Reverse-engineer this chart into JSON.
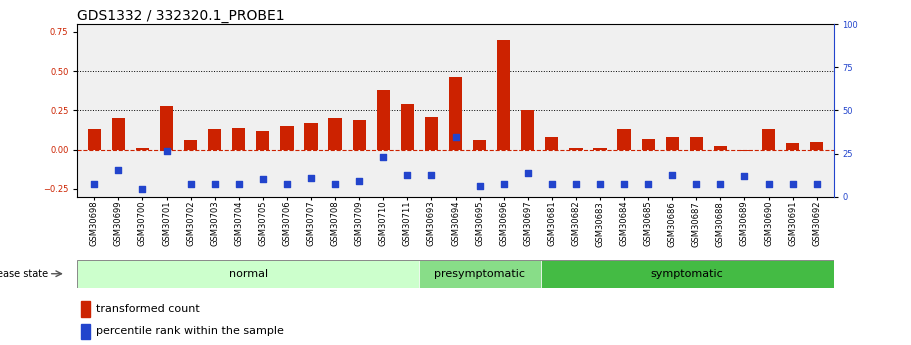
{
  "title": "GDS1332 / 332320.1_PROBE1",
  "samples": [
    "GSM30698",
    "GSM30699",
    "GSM30700",
    "GSM30701",
    "GSM30702",
    "GSM30703",
    "GSM30704",
    "GSM30705",
    "GSM30706",
    "GSM30707",
    "GSM30708",
    "GSM30709",
    "GSM30710",
    "GSM30711",
    "GSM30693",
    "GSM30694",
    "GSM30695",
    "GSM30696",
    "GSM30697",
    "GSM30681",
    "GSM30682",
    "GSM30683",
    "GSM30684",
    "GSM30685",
    "GSM30686",
    "GSM30687",
    "GSM30688",
    "GSM30689",
    "GSM30690",
    "GSM30691",
    "GSM30692"
  ],
  "red_bars": [
    0.13,
    0.2,
    0.01,
    0.28,
    0.06,
    0.13,
    0.14,
    0.12,
    0.15,
    0.17,
    0.2,
    0.19,
    0.38,
    0.29,
    0.21,
    0.46,
    0.06,
    0.7,
    0.25,
    0.08,
    0.01,
    0.01,
    0.13,
    0.07,
    0.08,
    0.08,
    0.02,
    -0.01,
    0.13,
    0.04,
    0.05
  ],
  "blue_markers": [
    -0.22,
    -0.13,
    -0.25,
    -0.01,
    -0.22,
    -0.22,
    -0.22,
    -0.19,
    -0.22,
    -0.18,
    -0.22,
    -0.2,
    -0.05,
    -0.16,
    -0.16,
    0.08,
    -0.23,
    -0.22,
    -0.15,
    -0.22,
    -0.22,
    -0.22,
    -0.22,
    -0.22,
    -0.16,
    -0.22,
    -0.22,
    -0.17,
    -0.22,
    -0.22,
    -0.22
  ],
  "groups": [
    {
      "label": "normal",
      "start": 0,
      "end": 13,
      "color": "#ccffcc"
    },
    {
      "label": "presymptomatic",
      "start": 14,
      "end": 18,
      "color": "#88dd88"
    },
    {
      "label": "symptomatic",
      "start": 19,
      "end": 30,
      "color": "#44bb44"
    }
  ],
  "ylim_left": [
    -0.3,
    0.8
  ],
  "yticks_left": [
    -0.25,
    0.0,
    0.25,
    0.5,
    0.75
  ],
  "ylim_right": [
    0,
    100
  ],
  "yticks_right": [
    0,
    25,
    50,
    75,
    100
  ],
  "red_color": "#cc2200",
  "blue_color": "#2244cc",
  "bar_width": 0.55,
  "marker_size": 18,
  "dotted_lines": [
    0.25,
    0.5
  ],
  "bg_color": "#f0f0f0",
  "title_fontsize": 10,
  "tick_fontsize": 6,
  "group_fontsize": 8,
  "legend_fontsize": 8
}
